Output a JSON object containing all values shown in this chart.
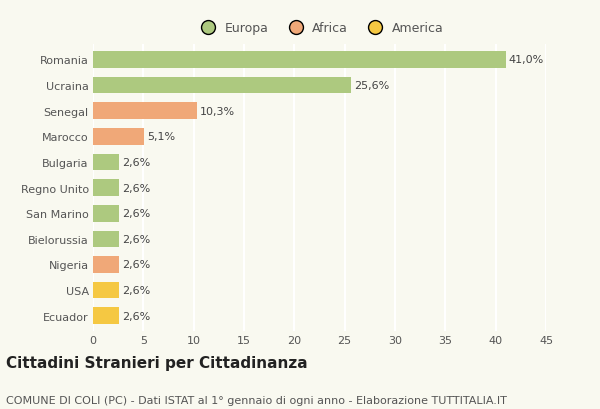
{
  "categories": [
    "Romania",
    "Ucraina",
    "Senegal",
    "Marocco",
    "Bulgaria",
    "Regno Unito",
    "San Marino",
    "Bielorussia",
    "Nigeria",
    "USA",
    "Ecuador"
  ],
  "values": [
    41.0,
    25.6,
    10.3,
    5.1,
    2.6,
    2.6,
    2.6,
    2.6,
    2.6,
    2.6,
    2.6
  ],
  "labels": [
    "41,0%",
    "25,6%",
    "10,3%",
    "5,1%",
    "2,6%",
    "2,6%",
    "2,6%",
    "2,6%",
    "2,6%",
    "2,6%",
    "2,6%"
  ],
  "colors": [
    "#adc97f",
    "#adc97f",
    "#f0a878",
    "#f0a878",
    "#adc97f",
    "#adc97f",
    "#adc97f",
    "#adc97f",
    "#f0a878",
    "#f5c842",
    "#f5c842"
  ],
  "legend_labels": [
    "Europa",
    "Africa",
    "America"
  ],
  "legend_colors": [
    "#adc97f",
    "#f0a878",
    "#f5c842"
  ],
  "title": "Cittadini Stranieri per Cittadinanza",
  "subtitle": "COMUNE DI COLI (PC) - Dati ISTAT al 1° gennaio di ogni anno - Elaborazione TUTTITALIA.IT",
  "xlim": [
    0,
    45
  ],
  "xticks": [
    0,
    5,
    10,
    15,
    20,
    25,
    30,
    35,
    40,
    45
  ],
  "background_color": "#f9f9f0",
  "grid_color": "#ffffff",
  "bar_height": 0.65,
  "title_fontsize": 11,
  "subtitle_fontsize": 8,
  "label_fontsize": 8,
  "tick_fontsize": 8,
  "legend_fontsize": 9
}
